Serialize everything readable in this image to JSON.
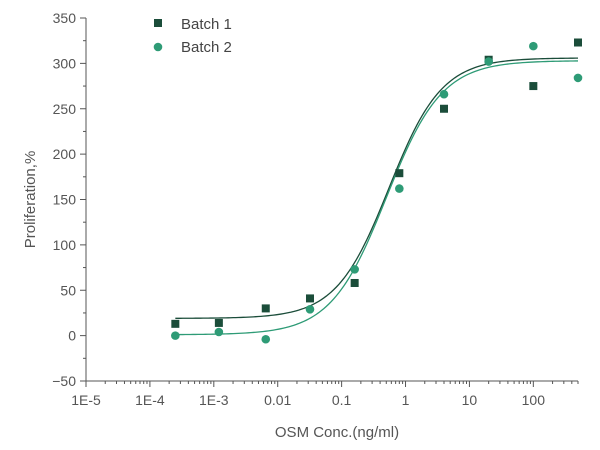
{
  "chart_data": {
    "type": "scatter",
    "title": "",
    "xlabel": "OSM Conc.(ng/ml)",
    "ylabel": "Proliferation,%",
    "xscale": "log",
    "xlim": [
      1e-05,
      500
    ],
    "ylim": [
      -50,
      350
    ],
    "x_ticks": [
      1e-05,
      0.0001,
      0.001,
      0.01,
      0.1,
      1,
      10,
      100
    ],
    "x_tick_labels": [
      "1E-5",
      "1E-4",
      "1E-3",
      "0.01",
      "0.1",
      "1",
      "10",
      "100"
    ],
    "y_ticks": [
      -50,
      0,
      50,
      100,
      150,
      200,
      250,
      300,
      350
    ],
    "y_tick_labels": [
      "−50",
      "0",
      "50",
      "100",
      "150",
      "200",
      "250",
      "300",
      "350"
    ],
    "grid": false,
    "legend_position": "top-left",
    "series": [
      {
        "name": "Batch 1",
        "marker": "square",
        "color": "#1b4d3a",
        "x": [
          0.00025,
          0.0012,
          0.0065,
          0.032,
          0.16,
          0.8,
          4,
          20,
          100,
          500
        ],
        "y": [
          13,
          14,
          30,
          41,
          58,
          179,
          250,
          304,
          275,
          323
        ],
        "fit": {
          "bottom": 19,
          "top": 306,
          "ec50": 0.55,
          "hill": 1.05
        }
      },
      {
        "name": "Batch 2",
        "marker": "circle",
        "color": "#2e9b76",
        "x": [
          0.00025,
          0.0012,
          0.0065,
          0.032,
          0.16,
          0.8,
          4,
          20,
          100,
          500
        ],
        "y": [
          0,
          4,
          -4,
          29,
          73,
          162,
          266,
          302,
          319,
          284
        ],
        "fit": {
          "bottom": 1,
          "top": 303,
          "ec50": 0.5,
          "hill": 1.0
        }
      }
    ]
  }
}
